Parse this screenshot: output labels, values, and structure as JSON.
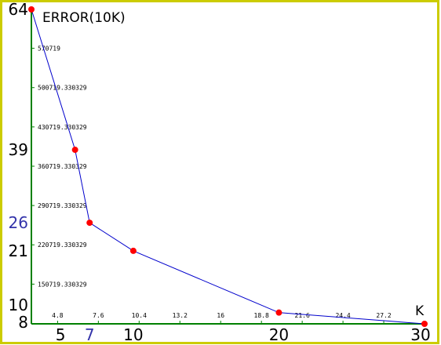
{
  "chart_data": {
    "type": "line",
    "title": "",
    "ylabel": "ERROR(10K)",
    "xlabel": "K",
    "xlim": [
      3,
      30
    ],
    "ylim": [
      8,
      64
    ],
    "grid": false,
    "colors": {
      "frame": "#cccc00",
      "axis": "#008000",
      "line": "#0000cc",
      "point": "#ff0000",
      "highlight": "#3333aa"
    },
    "series": [
      {
        "x": [
          3,
          6,
          7,
          10,
          20,
          30
        ],
        "y": [
          64,
          39,
          26,
          21,
          10,
          8
        ]
      }
    ],
    "x_minor_ticks": [
      {
        "value": 4.8,
        "label": "4.8"
      },
      {
        "value": 7.6,
        "label": "7.6"
      },
      {
        "value": 10.4,
        "label": "10.4"
      },
      {
        "value": 13.2,
        "label": "13.2"
      },
      {
        "value": 16,
        "label": "16"
      },
      {
        "value": 18.8,
        "label": "18.8"
      },
      {
        "value": 21.6,
        "label": "21.6"
      },
      {
        "value": 24.4,
        "label": "24.4"
      },
      {
        "value": 27.2,
        "label": "27.2"
      }
    ],
    "y_minor_ticks": [
      {
        "value": 57.0719,
        "label": "570719"
      },
      {
        "value": 50.0719,
        "label": "500719.330329"
      },
      {
        "value": 43.0719,
        "label": "430719.330329"
      },
      {
        "value": 36.0719,
        "label": "360719.330329"
      },
      {
        "value": 29.0719,
        "label": "290719.330329"
      },
      {
        "value": 22.0719,
        "label": "220719.330329"
      },
      {
        "value": 15.0719,
        "label": "150719.330329"
      }
    ],
    "x_major_labels": [
      {
        "value": 5,
        "label": "5",
        "highlight": false
      },
      {
        "value": 7,
        "label": "7",
        "highlight": true
      },
      {
        "value": 10,
        "label": "10",
        "highlight": false
      },
      {
        "value": 20,
        "label": "20",
        "highlight": false
      },
      {
        "value": 30,
        "label": "30",
        "highlight": false
      }
    ],
    "y_major_labels": [
      {
        "value": 64,
        "label": "64",
        "highlight": false
      },
      {
        "value": 39,
        "label": "39",
        "highlight": false
      },
      {
        "value": 26,
        "label": "26",
        "highlight": true
      },
      {
        "value": 21,
        "label": "21",
        "highlight": false
      },
      {
        "value": 10,
        "label": "10",
        "highlight": false
      },
      {
        "value": 8,
        "label": "8",
        "highlight": false
      }
    ]
  }
}
